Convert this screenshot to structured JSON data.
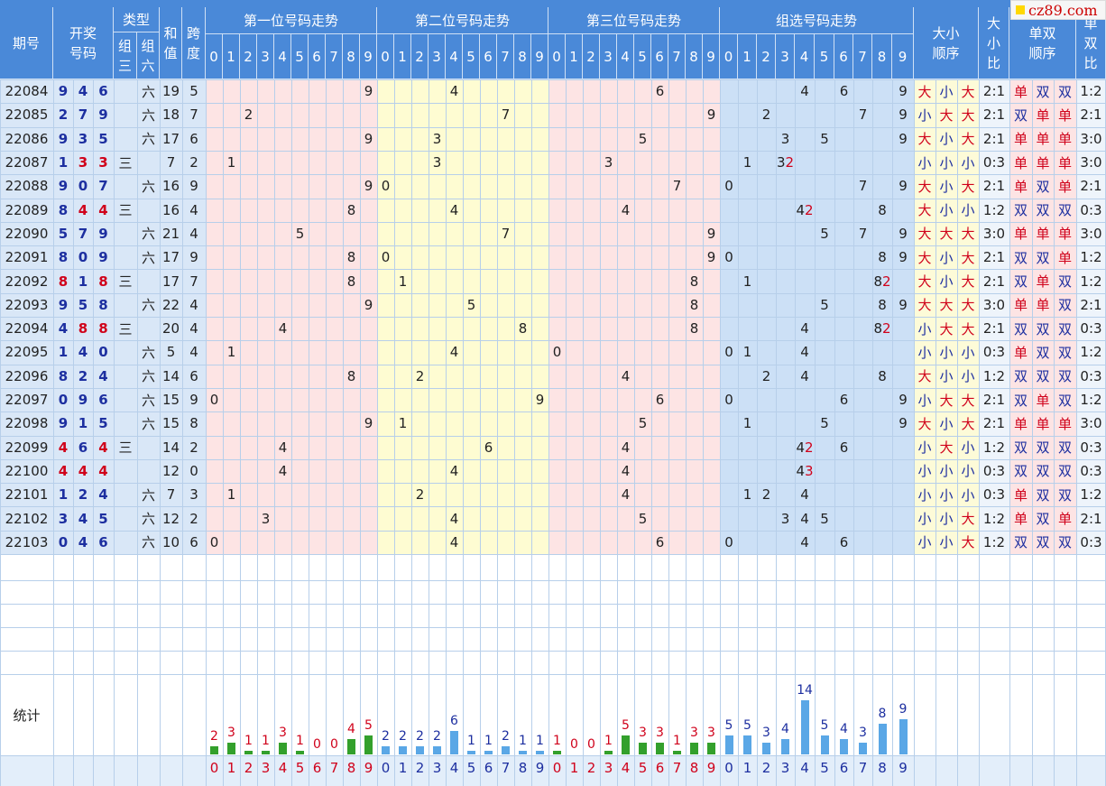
{
  "site": {
    "logo_text": "cz89.com"
  },
  "header": {
    "qihao": "期号",
    "kaijiang": "开奖号码",
    "leixing": "类型",
    "zusan": "组三",
    "zuliu": "组六",
    "hezhi": "和值",
    "kuadu": "跨度",
    "pos1": "第一位号码走势",
    "pos2": "第二位号码走势",
    "pos3": "第三位号码走势",
    "group": "组选号码走势",
    "daxiao_seq": "大小顺序",
    "daxiao_ratio": "大小比",
    "danshuang_seq": "单双顺序",
    "danshuang_ratio": "单双比",
    "digits": [
      "0",
      "1",
      "2",
      "3",
      "4",
      "5",
      "6",
      "7",
      "8",
      "9"
    ]
  },
  "rows": [
    {
      "issue": "22084",
      "num": [
        9,
        4,
        6
      ],
      "type": "六",
      "sum": "19",
      "span": "5",
      "dx": [
        "大",
        "小",
        "大"
      ],
      "dxr": "2:1",
      "ds": [
        "单",
        "双",
        "双"
      ],
      "dsr": "1:2"
    },
    {
      "issue": "22085",
      "num": [
        2,
        7,
        9
      ],
      "type": "六",
      "sum": "18",
      "span": "7",
      "dx": [
        "小",
        "大",
        "大"
      ],
      "dxr": "2:1",
      "ds": [
        "双",
        "单",
        "单"
      ],
      "dsr": "2:1"
    },
    {
      "issue": "22086",
      "num": [
        9,
        3,
        5
      ],
      "type": "六",
      "sum": "17",
      "span": "6",
      "dx": [
        "大",
        "小",
        "大"
      ],
      "dxr": "2:1",
      "ds": [
        "单",
        "单",
        "单"
      ],
      "dsr": "3:0"
    },
    {
      "issue": "22087",
      "num": [
        1,
        3,
        3
      ],
      "type": "三",
      "sum": "7",
      "span": "2",
      "dx": [
        "小",
        "小",
        "小"
      ],
      "dxr": "0:3",
      "ds": [
        "单",
        "单",
        "单"
      ],
      "dsr": "3:0"
    },
    {
      "issue": "22088",
      "num": [
        9,
        0,
        7
      ],
      "type": "六",
      "sum": "16",
      "span": "9",
      "dx": [
        "大",
        "小",
        "大"
      ],
      "dxr": "2:1",
      "ds": [
        "单",
        "双",
        "单"
      ],
      "dsr": "2:1"
    },
    {
      "issue": "22089",
      "num": [
        8,
        4,
        4
      ],
      "type": "三",
      "sum": "16",
      "span": "4",
      "dx": [
        "大",
        "小",
        "小"
      ],
      "dxr": "1:2",
      "ds": [
        "双",
        "双",
        "双"
      ],
      "dsr": "0:3"
    },
    {
      "issue": "22090",
      "num": [
        5,
        7,
        9
      ],
      "type": "六",
      "sum": "21",
      "span": "4",
      "dx": [
        "大",
        "大",
        "大"
      ],
      "dxr": "3:0",
      "ds": [
        "单",
        "单",
        "单"
      ],
      "dsr": "3:0"
    },
    {
      "issue": "22091",
      "num": [
        8,
        0,
        9
      ],
      "type": "六",
      "sum": "17",
      "span": "9",
      "dx": [
        "大",
        "小",
        "大"
      ],
      "dxr": "2:1",
      "ds": [
        "双",
        "双",
        "单"
      ],
      "dsr": "1:2"
    },
    {
      "issue": "22092",
      "num": [
        8,
        1,
        8
      ],
      "type": "三",
      "sum": "17",
      "span": "7",
      "dx": [
        "大",
        "小",
        "大"
      ],
      "dxr": "2:1",
      "ds": [
        "双",
        "单",
        "双"
      ],
      "dsr": "1:2"
    },
    {
      "issue": "22093",
      "num": [
        9,
        5,
        8
      ],
      "type": "六",
      "sum": "22",
      "span": "4",
      "dx": [
        "大",
        "大",
        "大"
      ],
      "dxr": "3:0",
      "ds": [
        "单",
        "单",
        "双"
      ],
      "dsr": "2:1"
    },
    {
      "issue": "22094",
      "num": [
        4,
        8,
        8
      ],
      "type": "三",
      "sum": "20",
      "span": "4",
      "dx": [
        "小",
        "大",
        "大"
      ],
      "dxr": "2:1",
      "ds": [
        "双",
        "双",
        "双"
      ],
      "dsr": "0:3"
    },
    {
      "issue": "22095",
      "num": [
        1,
        4,
        0
      ],
      "type": "六",
      "sum": "5",
      "span": "4",
      "dx": [
        "小",
        "小",
        "小"
      ],
      "dxr": "0:3",
      "ds": [
        "单",
        "双",
        "双"
      ],
      "dsr": "1:2"
    },
    {
      "issue": "22096",
      "num": [
        8,
        2,
        4
      ],
      "type": "六",
      "sum": "14",
      "span": "6",
      "dx": [
        "大",
        "小",
        "小"
      ],
      "dxr": "1:2",
      "ds": [
        "双",
        "双",
        "双"
      ],
      "dsr": "0:3"
    },
    {
      "issue": "22097",
      "num": [
        0,
        9,
        6
      ],
      "type": "六",
      "sum": "15",
      "span": "9",
      "dx": [
        "小",
        "大",
        "大"
      ],
      "dxr": "2:1",
      "ds": [
        "双",
        "单",
        "双"
      ],
      "dsr": "1:2"
    },
    {
      "issue": "22098",
      "num": [
        9,
        1,
        5
      ],
      "type": "六",
      "sum": "15",
      "span": "8",
      "dx": [
        "大",
        "小",
        "大"
      ],
      "dxr": "2:1",
      "ds": [
        "单",
        "单",
        "单"
      ],
      "dsr": "3:0"
    },
    {
      "issue": "22099",
      "num": [
        4,
        6,
        4
      ],
      "type": "三",
      "sum": "14",
      "span": "2",
      "dx": [
        "小",
        "大",
        "小"
      ],
      "dxr": "1:2",
      "ds": [
        "双",
        "双",
        "双"
      ],
      "dsr": "0:3"
    },
    {
      "issue": "22100",
      "num": [
        4,
        4,
        4
      ],
      "type": "",
      "sum": "12",
      "span": "0",
      "dx": [
        "小",
        "小",
        "小"
      ],
      "dxr": "0:3",
      "ds": [
        "双",
        "双",
        "双"
      ],
      "dsr": "0:3"
    },
    {
      "issue": "22101",
      "num": [
        1,
        2,
        4
      ],
      "type": "六",
      "sum": "7",
      "span": "3",
      "dx": [
        "小",
        "小",
        "小"
      ],
      "dxr": "0:3",
      "ds": [
        "单",
        "双",
        "双"
      ],
      "dsr": "1:2"
    },
    {
      "issue": "22102",
      "num": [
        3,
        4,
        5
      ],
      "type": "六",
      "sum": "12",
      "span": "2",
      "dx": [
        "小",
        "小",
        "大"
      ],
      "dxr": "1:2",
      "ds": [
        "单",
        "双",
        "单"
      ],
      "dsr": "2:1"
    },
    {
      "issue": "22103",
      "num": [
        0,
        4,
        6
      ],
      "type": "六",
      "sum": "10",
      "span": "6",
      "dx": [
        "小",
        "小",
        "大"
      ],
      "dxr": "1:2",
      "ds": [
        "双",
        "双",
        "双"
      ],
      "dsr": "0:3"
    }
  ],
  "stats": {
    "label": "统计",
    "pos1": [
      2,
      3,
      1,
      1,
      3,
      1,
      0,
      0,
      4,
      5
    ],
    "pos2": [
      2,
      2,
      2,
      2,
      6,
      1,
      1,
      2,
      1,
      1
    ],
    "pos3": [
      1,
      0,
      0,
      1,
      5,
      3,
      3,
      1,
      3,
      3
    ],
    "group": [
      5,
      5,
      3,
      4,
      14,
      5,
      4,
      3,
      8,
      9
    ]
  },
  "colors": {
    "header": "#4a89d8",
    "pos1_bg": "#fde4e4",
    "pos2_bg": "#fefcd2",
    "pos3_bg": "#fde4e4",
    "group_bg": "#cce0f6",
    "red": "#d0021b",
    "blue": "#1d2fa0",
    "green_bar": "#33a02c",
    "blue_bar": "#5aa7e6"
  }
}
